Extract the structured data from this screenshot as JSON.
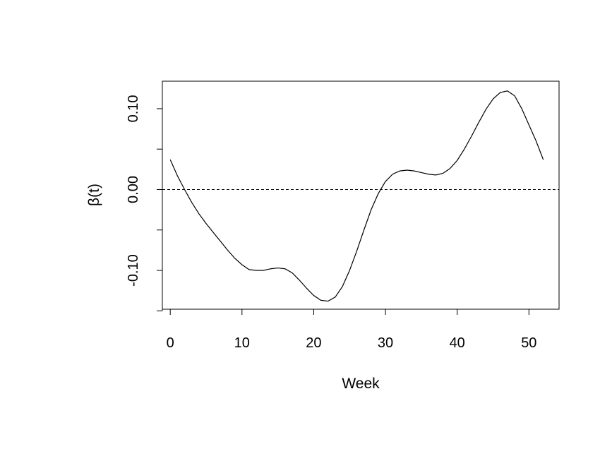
{
  "chart_data": {
    "type": "line",
    "title": "",
    "xlabel": "Week",
    "ylabel": "β(t)",
    "xlim": [
      -1.1,
      54.2
    ],
    "ylim": [
      -0.148,
      0.134
    ],
    "x_ticks": [
      0,
      10,
      20,
      30,
      40,
      50
    ],
    "x_tick_labels": [
      "0",
      "10",
      "20",
      "30",
      "40",
      "50"
    ],
    "y_ticks": [
      -0.15,
      -0.1,
      -0.05,
      0.0,
      0.05,
      0.1
    ],
    "y_tick_labels": [
      "",
      "-0.10",
      "",
      "0.00",
      "",
      "0.10"
    ],
    "grid": false,
    "reference_line": {
      "y": 0,
      "style": "dashed"
    },
    "series": [
      {
        "x": [
          0,
          1,
          2,
          3,
          4,
          5,
          6,
          7,
          8,
          9,
          10,
          11,
          12,
          13,
          14,
          15,
          16,
          17,
          18,
          19,
          20,
          21,
          22,
          23,
          24,
          25,
          26,
          27,
          28,
          29,
          30,
          31,
          32,
          33,
          34,
          35,
          36,
          37,
          38,
          39,
          40,
          41,
          42,
          43,
          44,
          45,
          46,
          47,
          48,
          49,
          50,
          51,
          52
        ],
        "values": [
          0.037,
          0.017,
          0.0,
          -0.016,
          -0.03,
          -0.042,
          -0.053,
          -0.064,
          -0.075,
          -0.085,
          -0.093,
          -0.099,
          -0.1,
          -0.1,
          -0.098,
          -0.097,
          -0.098,
          -0.103,
          -0.112,
          -0.122,
          -0.131,
          -0.137,
          -0.138,
          -0.133,
          -0.12,
          -0.1,
          -0.076,
          -0.05,
          -0.025,
          -0.005,
          0.01,
          0.019,
          0.023,
          0.024,
          0.023,
          0.021,
          0.019,
          0.018,
          0.02,
          0.026,
          0.036,
          0.05,
          0.066,
          0.083,
          0.099,
          0.112,
          0.12,
          0.122,
          0.116,
          0.1,
          0.08,
          0.06,
          0.037
        ]
      }
    ]
  }
}
